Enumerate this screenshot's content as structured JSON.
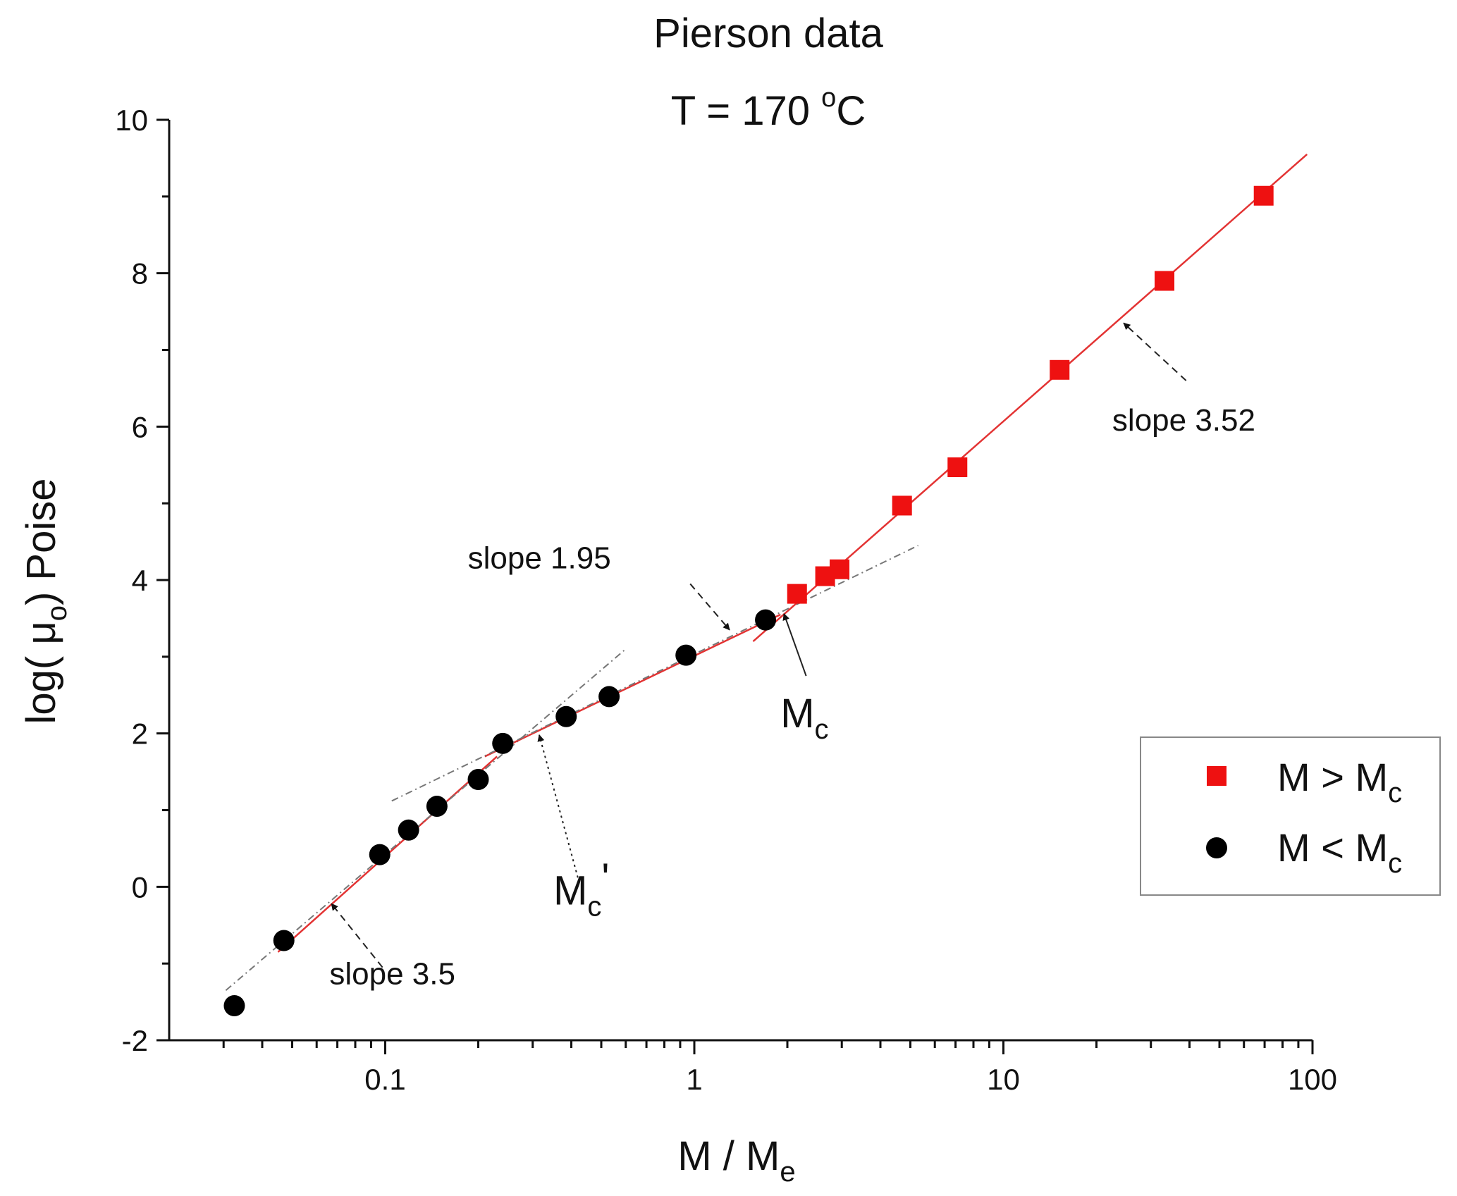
{
  "chart_data": {
    "type": "scatter",
    "title": "Pierson data",
    "subtitle": {
      "prefix": "T = 170 ",
      "degree": "o",
      "unit": "C"
    },
    "xlabel": {
      "main": "M / M",
      "sub": "e"
    },
    "ylabel": {
      "pre": "log( ",
      "greek": "μ",
      "sub": "o",
      "post": ") Poise"
    },
    "xscale": "log",
    "xlim": [
      0.02,
      100
    ],
    "ylim": [
      -2,
      10
    ],
    "x_ticks": [
      {
        "value": 0.1,
        "label": "0.1"
      },
      {
        "value": 1,
        "label": "1"
      },
      {
        "value": 10,
        "label": "10"
      },
      {
        "value": 100,
        "label": "100"
      }
    ],
    "y_ticks": [
      {
        "value": -2,
        "label": "-2"
      },
      {
        "value": 0,
        "label": "0"
      },
      {
        "value": 2,
        "label": "2"
      },
      {
        "value": 4,
        "label": "4"
      },
      {
        "value": 6,
        "label": "6"
      },
      {
        "value": 8,
        "label": "8"
      },
      {
        "value": 10,
        "label": "10"
      }
    ],
    "series": [
      {
        "name": "M > Mc",
        "legend": {
          "main": "M > M",
          "sub": "c"
        },
        "marker": "square",
        "color": "#ee1111",
        "points": [
          {
            "x": 2.15,
            "y": 3.82
          },
          {
            "x": 2.65,
            "y": 4.05
          },
          {
            "x": 2.95,
            "y": 4.14
          },
          {
            "x": 4.7,
            "y": 4.97
          },
          {
            "x": 7.1,
            "y": 5.47
          },
          {
            "x": 15.2,
            "y": 6.74
          },
          {
            "x": 33.2,
            "y": 7.9
          },
          {
            "x": 69.5,
            "y": 9.01
          }
        ]
      },
      {
        "name": "M < Mc",
        "legend": {
          "main": "M < M",
          "sub": "c"
        },
        "marker": "circle",
        "color": "#000000",
        "points": [
          {
            "x": 0.0325,
            "y": -1.55
          },
          {
            "x": 0.047,
            "y": -0.7
          },
          {
            "x": 0.096,
            "y": 0.42
          },
          {
            "x": 0.119,
            "y": 0.74
          },
          {
            "x": 0.147,
            "y": 1.05
          },
          {
            "x": 0.2,
            "y": 1.4
          },
          {
            "x": 0.24,
            "y": 1.87
          },
          {
            "x": 0.385,
            "y": 2.22
          },
          {
            "x": 0.53,
            "y": 2.48
          },
          {
            "x": 0.94,
            "y": 3.02
          },
          {
            "x": 1.7,
            "y": 3.48
          }
        ]
      }
    ],
    "fit_lines": [
      {
        "name": "slope 3.5 fit",
        "color": "#e33333",
        "style": "solid",
        "from": {
          "x": 0.045,
          "y": -0.85
        },
        "to": {
          "x": 0.23,
          "y": 1.7
        }
      },
      {
        "name": "slope 3.5 extension",
        "color": "#777777",
        "style": "dashdot",
        "from": {
          "x": 0.0305,
          "y": -1.35
        },
        "to": {
          "x": 0.6,
          "y": 3.1
        }
      },
      {
        "name": "slope 1.95 fit",
        "color": "#e33333",
        "style": "solid",
        "from": {
          "x": 0.21,
          "y": 1.7
        },
        "to": {
          "x": 1.9,
          "y": 3.55
        }
      },
      {
        "name": "slope 1.95 extension",
        "color": "#777777",
        "style": "dashdot",
        "from": {
          "x": 0.105,
          "y": 1.12
        },
        "to": {
          "x": 5.3,
          "y": 4.45
        }
      },
      {
        "name": "slope 3.52 fit",
        "color": "#e33333",
        "style": "solid",
        "from": {
          "x": 1.55,
          "y": 3.2
        },
        "to": {
          "x": 96,
          "y": 9.55
        }
      }
    ],
    "annotations": [
      {
        "text": "slope 3.5",
        "text_at": {
          "x": 0.066,
          "y": -1.27
        },
        "arrow_from": {
          "x": 0.098,
          "y": -1.05
        },
        "arrow_to": {
          "x": 0.067,
          "y": -0.22
        },
        "arrow_style": "dashed"
      },
      {
        "text": "slope 1.95",
        "text_at": {
          "x": 0.185,
          "y": 4.15
        },
        "arrow_from": {
          "x": 0.97,
          "y": 3.95
        },
        "arrow_to": {
          "x": 1.3,
          "y": 3.35
        },
        "arrow_style": "dashed"
      },
      {
        "text": "slope 3.52",
        "text_at": {
          "x": 22.5,
          "y": 5.95
        },
        "arrow_from": {
          "x": 39,
          "y": 6.6
        },
        "arrow_to": {
          "x": 24.5,
          "y": 7.35
        },
        "arrow_style": "dashed"
      },
      {
        "main": "M",
        "sub": "c",
        "text_at": {
          "x": 1.9,
          "y": 2.08
        },
        "arrow_from": {
          "x": 2.3,
          "y": 2.75
        },
        "arrow_to": {
          "x": 1.95,
          "y": 3.56
        },
        "arrow_style": "solid"
      },
      {
        "main": "M",
        "sub": "c",
        "prime": "'",
        "text_at": {
          "x": 0.35,
          "y": -0.23
        },
        "arrow_from": {
          "x": 0.42,
          "y": 0.12
        },
        "arrow_to": {
          "x": 0.315,
          "y": 1.98
        },
        "arrow_style": "dotted"
      }
    ],
    "grid": false,
    "legend_position": "right"
  }
}
